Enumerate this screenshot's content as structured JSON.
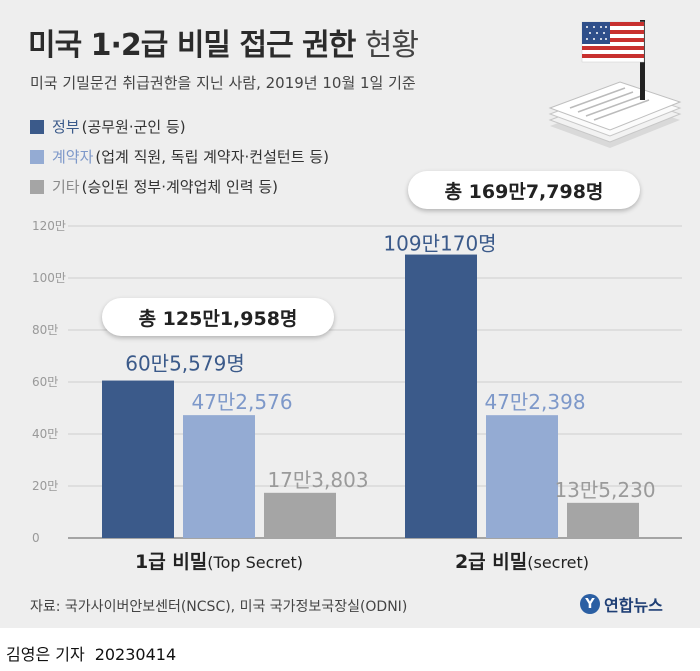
{
  "title": {
    "main": "미국 1·2급 비밀 접근 권한",
    "suffix": "현황"
  },
  "subtitle": "미국 기밀문건 취급권한을 지닌 사람, 2019년 10월 1일 기준",
  "legend": [
    {
      "name": "정부",
      "desc": "(공무원·군인 등)",
      "color": "#3b5a8a"
    },
    {
      "name": "계약자",
      "desc": "(업계 직원, 독립 계약자·컨설턴트 등)",
      "color": "#94abd3"
    },
    {
      "name": "기타",
      "desc": "(승인된 정부·계약업체 인력 등)",
      "color": "#a5a5a5"
    }
  ],
  "totals": [
    {
      "label": "총 125만1,958명"
    },
    {
      "label": "총 169만7,798명"
    }
  ],
  "chart_data": {
    "type": "bar",
    "categories": [
      "1급 비밀",
      "2급 비밀"
    ],
    "category_suffix": [
      "(Top Secret)",
      "(secret)"
    ],
    "ylim": [
      0,
      120
    ],
    "yticks": [
      {
        "value": 0,
        "label": "0"
      },
      {
        "value": 20,
        "label": "20만"
      },
      {
        "value": 40,
        "label": "40만"
      },
      {
        "value": 60,
        "label": "60만"
      },
      {
        "value": 80,
        "label": "80만"
      },
      {
        "value": 100,
        "label": "100만"
      },
      {
        "value": 120,
        "label": "120만"
      }
    ],
    "unit": "만",
    "series": [
      {
        "name": "정부",
        "color": "#3b5a8a",
        "label_color": "#3b5a8a",
        "values": [
          60.5579,
          109.017
        ],
        "labels": [
          "60만5,579명",
          "109만170명"
        ]
      },
      {
        "name": "계약자",
        "color": "#94abd3",
        "label_color": "#7d98c9",
        "values": [
          47.2576,
          47.2398
        ],
        "labels": [
          "47만2,576",
          "47만2,398"
        ]
      },
      {
        "name": "기타",
        "color": "#a5a5a5",
        "label_color": "#9a9a9a",
        "values": [
          17.3803,
          13.523
        ],
        "labels": [
          "17만3,803",
          "13만5,230"
        ]
      }
    ],
    "grid": true,
    "legend_position": "top-left"
  },
  "source": "자료: 국가사이버안보센터(NCSC), 미국 국가정보국장실(ODNI)",
  "logo": {
    "mark": "Y",
    "text": "연합뉴스"
  },
  "byline": {
    "author": "김영은 기자",
    "date": "20230414"
  },
  "icons": {
    "flag": "us-flag-icon",
    "documents": "document-stack-icon"
  }
}
